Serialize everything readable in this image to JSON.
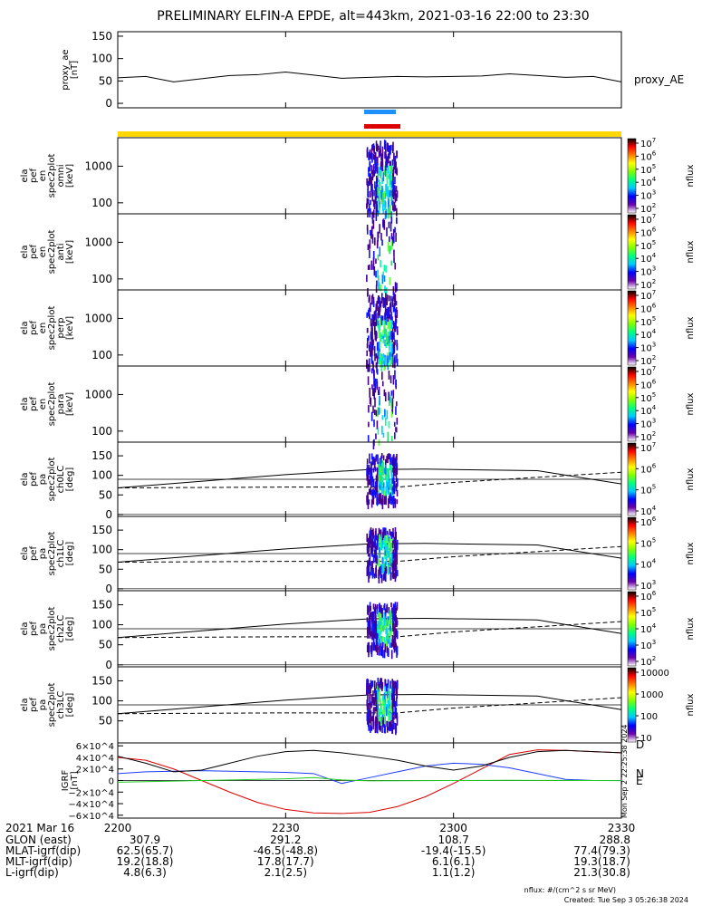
{
  "title": "PRELIMINARY ELFIN-A EPDE, alt=443km, 2021-03-16 22:00 to 23:30",
  "footer": {
    "units": "nflux: #/(cm^2 s sr MeV)",
    "created": "Created: Tue Sep  3 05:26:38 2024",
    "side_stamp1": "Mon Sep  2 22:25:38 2024",
    "side_stamp2": "Tue Sep  3 05:26:38 2024"
  },
  "colors": {
    "bar_blue": "#1e90ff",
    "bar_red": "#dd0000",
    "bar_yellow": "#ffd700",
    "grf_d": "#dd0000",
    "grf_n": "#1e3cff",
    "grf_e": "#22cc22"
  },
  "time_axis": {
    "ticks": [
      "2200",
      "2230",
      "2300",
      "2330"
    ],
    "date_label": "2021 Mar 16",
    "rows": [
      {
        "label": "GLON (east)",
        "values": [
          "307.9",
          "291.2",
          "108.7",
          "288.8"
        ]
      },
      {
        "label": "MLAT-igrf(dip)",
        "values": [
          "62.5(65.7)",
          "-46.5(-48.8)",
          "-19.4(-15.5)",
          "77.4(79.3)"
        ]
      },
      {
        "label": "MLT-igrf(dip)",
        "values": [
          "19.2(18.8)",
          "17.8(17.7)",
          "6.1(6.1)",
          "19.3(18.7)"
        ]
      },
      {
        "label": "L-igrf(dip)",
        "values": [
          "4.8(6.3)",
          "2.1(2.5)",
          "1.1(1.2)",
          "21.3(30.8)"
        ]
      }
    ]
  },
  "chart_data": [
    {
      "type": "line",
      "panel": "proxy_ae",
      "ylabel": [
        "proxy_ae",
        "[nT]"
      ],
      "yticks": [
        0,
        50,
        100,
        150
      ],
      "ylim": [
        -10,
        160
      ],
      "series": [
        {
          "name": "proxy_AE",
          "x": [
            0,
            5,
            10,
            15,
            20,
            25,
            30,
            35,
            40,
            45,
            50,
            55,
            60,
            65,
            70,
            75,
            80,
            85,
            90
          ],
          "values": [
            57,
            60,
            48,
            55,
            62,
            64,
            70,
            63,
            56,
            58,
            60,
            59,
            60,
            61,
            66,
            62,
            58,
            60,
            48
          ]
        }
      ]
    },
    {
      "type": "heatmap",
      "panel": "spec2plot_omni",
      "ylabel": [
        "ela",
        "pef",
        "en",
        "spec2plot",
        "omni",
        "[keV]"
      ],
      "yticks": [
        100,
        1000
      ],
      "ylim_log": [
        50,
        6000
      ],
      "colorbar": {
        "label": "nflux",
        "ticks": [
          "10^7",
          "10^6",
          "10^5",
          "10^4",
          "10^3",
          "10^2"
        ]
      }
    },
    {
      "type": "heatmap",
      "panel": "spec2plot_anti",
      "ylabel": [
        "ela",
        "pef",
        "en",
        "spec2plot",
        "anti",
        "[keV]"
      ],
      "yticks": [
        100,
        1000
      ],
      "ylim_log": [
        50,
        6000
      ],
      "colorbar": {
        "label": "nflux",
        "ticks": [
          "10^7",
          "10^6",
          "10^5",
          "10^4",
          "10^3",
          "10^2"
        ]
      }
    },
    {
      "type": "heatmap",
      "panel": "spec2plot_perp",
      "ylabel": [
        "ela",
        "pef",
        "en",
        "spec2plot",
        "perp",
        "[keV]"
      ],
      "yticks": [
        100,
        1000
      ],
      "ylim_log": [
        50,
        6000
      ],
      "colorbar": {
        "label": "nflux",
        "ticks": [
          "10^7",
          "10^6",
          "10^5",
          "10^4",
          "10^3",
          "10^2"
        ]
      }
    },
    {
      "type": "heatmap",
      "panel": "spec2plot_para",
      "ylabel": [
        "ela",
        "pef",
        "en",
        "spec2plot",
        "para",
        "[keV]"
      ],
      "yticks": [
        100,
        1000
      ],
      "ylim_log": [
        50,
        6000
      ],
      "colorbar": {
        "label": "nflux",
        "ticks": [
          "10^7",
          "10^6",
          "10^5",
          "10^4",
          "10^3",
          "10^2"
        ]
      }
    },
    {
      "type": "heatmap",
      "panel": "spec2plot_ch0LC",
      "ylabel": [
        "ela",
        "pef",
        "pa",
        "spec2plot",
        "ch0LC",
        "[deg]"
      ],
      "yticks": [
        0,
        50,
        100,
        150
      ],
      "ylim": [
        -5,
        185
      ],
      "colorbar": {
        "label": "nflux",
        "ticks": [
          "10^7",
          "10^6",
          "10^5",
          "10^4"
        ]
      }
    },
    {
      "type": "heatmap",
      "panel": "spec2plot_ch1LC",
      "ylabel": [
        "ela",
        "pef",
        "pa",
        "spec2plot",
        "ch1LC",
        "[deg]"
      ],
      "yticks": [
        0,
        50,
        100,
        150
      ],
      "ylim": [
        -5,
        185
      ],
      "colorbar": {
        "label": "nflux",
        "ticks": [
          "10^6",
          "10^5",
          "10^4",
          "10^3"
        ]
      }
    },
    {
      "type": "heatmap",
      "panel": "spec2plot_ch2LC",
      "ylabel": [
        "ela",
        "pef",
        "pa",
        "spec2plot",
        "ch2LC",
        "[deg]"
      ],
      "yticks": [
        0,
        50,
        100,
        150
      ],
      "ylim": [
        -5,
        185
      ],
      "colorbar": {
        "label": "nflux",
        "ticks": [
          "10^6",
          "10^5",
          "10^4",
          "10^3",
          "10^2"
        ]
      }
    },
    {
      "type": "heatmap",
      "panel": "spec2plot_ch3LC",
      "ylabel": [
        "ela",
        "pef",
        "pa",
        "spec2plot",
        "ch3LC",
        "[deg]"
      ],
      "yticks": [
        50,
        100,
        150
      ],
      "ylim": [
        -5,
        185
      ],
      "colorbar": {
        "label": "nflux",
        "ticks": [
          "10000",
          "1000",
          "100",
          "10"
        ]
      }
    },
    {
      "type": "line",
      "panel": "IGRF",
      "ylabel": [
        "IGRF",
        "[nT]"
      ],
      "yticks": [
        "6×10^4",
        "4×10^4",
        "2×10^4",
        "0",
        "−2×10^4",
        "−4×10^4",
        "−6×10^4"
      ],
      "ylim": [
        -65000,
        65000
      ],
      "series": [
        {
          "name": "D",
          "x": [
            0,
            5,
            10,
            15,
            20,
            25,
            30,
            35,
            40,
            45,
            50,
            55,
            60,
            65,
            70,
            75,
            80,
            85,
            90
          ],
          "values": [
            40000,
            35000,
            20000,
            0,
            -20000,
            -38000,
            -50000,
            -56000,
            -57000,
            -55000,
            -45000,
            -28000,
            -5000,
            20000,
            45000,
            53000,
            52000,
            50000,
            48000
          ]
        },
        {
          "name": "N",
          "x": [
            0,
            5,
            10,
            15,
            20,
            25,
            30,
            35,
            40,
            45,
            50,
            55,
            60,
            65,
            70,
            75,
            80,
            85,
            90
          ],
          "values": [
            12000,
            15000,
            16000,
            17000,
            16000,
            15000,
            14000,
            12000,
            -5000,
            5000,
            15000,
            25000,
            30000,
            28000,
            22000,
            12000,
            2000,
            0,
            0
          ]
        },
        {
          "name": "E",
          "x": [
            0,
            5,
            10,
            15,
            20,
            25,
            30,
            35,
            40,
            45,
            50,
            55,
            60,
            65,
            70,
            75,
            80,
            85,
            90
          ],
          "values": [
            -3000,
            -2000,
            -1000,
            0,
            1000,
            2000,
            3000,
            5000,
            1000,
            -500,
            -300,
            -200,
            0,
            200,
            300,
            200,
            100,
            0,
            -200
          ]
        },
        {
          "name": "",
          "x": [
            0,
            5,
            10,
            15,
            20,
            25,
            30,
            35,
            40,
            45,
            50,
            55,
            60,
            65,
            70,
            75,
            80,
            85,
            90
          ],
          "values": [
            42000,
            30000,
            15000,
            18000,
            30000,
            42000,
            50000,
            52000,
            48000,
            42000,
            35000,
            25000,
            18000,
            25000,
            40000,
            50000,
            52000,
            50000,
            48000
          ]
        }
      ]
    }
  ]
}
